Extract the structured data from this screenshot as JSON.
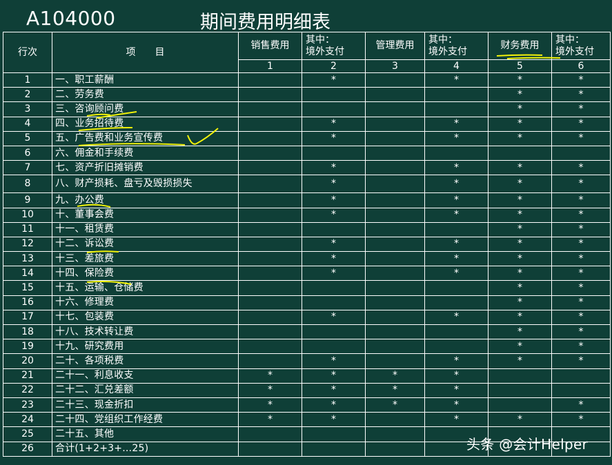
{
  "form_code": "A104000",
  "form_title": "期间费用明细表",
  "headers": {
    "row_no": "行次",
    "item": "项　　目",
    "cols": [
      {
        "line1": "销售费用",
        "line2": ""
      },
      {
        "line1": "其中：",
        "line2": "境外支付"
      },
      {
        "line1": "管理费用",
        "line2": ""
      },
      {
        "line1": "其中：",
        "line2": "境外支付"
      },
      {
        "line1": "财务费用",
        "line2": ""
      },
      {
        "line1": "其中：",
        "line2": "境外支付"
      }
    ],
    "col_numbers": [
      "1",
      "2",
      "3",
      "4",
      "5",
      "6"
    ]
  },
  "rows": [
    {
      "no": "1",
      "item": "一、职工薪酬",
      "marks": [
        "",
        "*",
        "",
        "*",
        "*",
        "*"
      ]
    },
    {
      "no": "2",
      "item": "二、劳务费",
      "marks": [
        "",
        "",
        "",
        "",
        "*",
        "*"
      ]
    },
    {
      "no": "3",
      "item": "三、咨询顾问费",
      "marks": [
        "",
        "",
        "",
        "",
        "*",
        "*"
      ]
    },
    {
      "no": "4",
      "item": "四、业务招待费",
      "marks": [
        "",
        "*",
        "",
        "*",
        "*",
        "*"
      ]
    },
    {
      "no": "5",
      "item": "五、广告费和业务宣传费",
      "marks": [
        "",
        "*",
        "",
        "*",
        "*",
        "*"
      ]
    },
    {
      "no": "6",
      "item": "六、佣金和手续费",
      "marks": [
        "",
        "",
        "",
        "",
        "",
        ""
      ]
    },
    {
      "no": "7",
      "item": "七、资产折旧摊销费",
      "marks": [
        "",
        "*",
        "",
        "*",
        "*",
        "*"
      ]
    },
    {
      "no": "8",
      "item": "八、财产损耗、盘亏及毁损损失",
      "marks": [
        "",
        "*",
        "",
        "*",
        "*",
        "*"
      ]
    },
    {
      "no": "9",
      "item": "九、办公费",
      "marks": [
        "",
        "*",
        "",
        "*",
        "*",
        "*"
      ]
    },
    {
      "no": "10",
      "item": "十、董事会费",
      "marks": [
        "",
        "*",
        "",
        "*",
        "*",
        "*"
      ]
    },
    {
      "no": "11",
      "item": "十一、租赁费",
      "marks": [
        "",
        "",
        "",
        "",
        "*",
        "*"
      ]
    },
    {
      "no": "12",
      "item": "十二、诉讼费",
      "marks": [
        "",
        "*",
        "",
        "*",
        "*",
        "*"
      ]
    },
    {
      "no": "13",
      "item": "十三、差旅费",
      "marks": [
        "",
        "*",
        "",
        "*",
        "*",
        "*"
      ]
    },
    {
      "no": "14",
      "item": "十四、保险费",
      "marks": [
        "",
        "*",
        "",
        "*",
        "*",
        "*"
      ]
    },
    {
      "no": "15",
      "item": "十五、运输、仓储费",
      "marks": [
        "",
        "",
        "",
        "",
        "*",
        "*"
      ]
    },
    {
      "no": "16",
      "item": "十六、修理费",
      "marks": [
        "",
        "",
        "",
        "",
        "*",
        "*"
      ]
    },
    {
      "no": "17",
      "item": "十七、包装费",
      "marks": [
        "",
        "*",
        "",
        "*",
        "*",
        "*"
      ]
    },
    {
      "no": "18",
      "item": "十八、技术转让费",
      "marks": [
        "",
        "",
        "",
        "",
        "*",
        "*"
      ]
    },
    {
      "no": "19",
      "item": "十九、研究费用",
      "marks": [
        "",
        "",
        "",
        "",
        "*",
        "*"
      ]
    },
    {
      "no": "20",
      "item": "二十、各项税费",
      "marks": [
        "",
        "*",
        "",
        "*",
        "*",
        "*"
      ]
    },
    {
      "no": "21",
      "item": "二十一、利息收支",
      "marks": [
        "*",
        "*",
        "*",
        "*",
        "",
        ""
      ]
    },
    {
      "no": "22",
      "item": "二十二、汇兑差额",
      "marks": [
        "*",
        "*",
        "*",
        "*",
        "",
        ""
      ]
    },
    {
      "no": "23",
      "item": "二十三、现金折扣",
      "marks": [
        "*",
        "*",
        "*",
        "*",
        "",
        "*"
      ]
    },
    {
      "no": "24",
      "item": "二十四、党组织工作经费",
      "marks": [
        "*",
        "*",
        "",
        "*",
        "*",
        "*"
      ]
    },
    {
      "no": "25",
      "item": "二十五、其他",
      "marks": [
        "",
        "",
        "",
        "",
        "",
        ""
      ]
    },
    {
      "no": "26",
      "item": "合计(1+2+3+…25)",
      "marks": [
        "",
        "",
        "",
        "",
        "",
        ""
      ]
    }
  ],
  "watermark": "头条 @会计Helper",
  "annotation_color": "#f2f20a"
}
